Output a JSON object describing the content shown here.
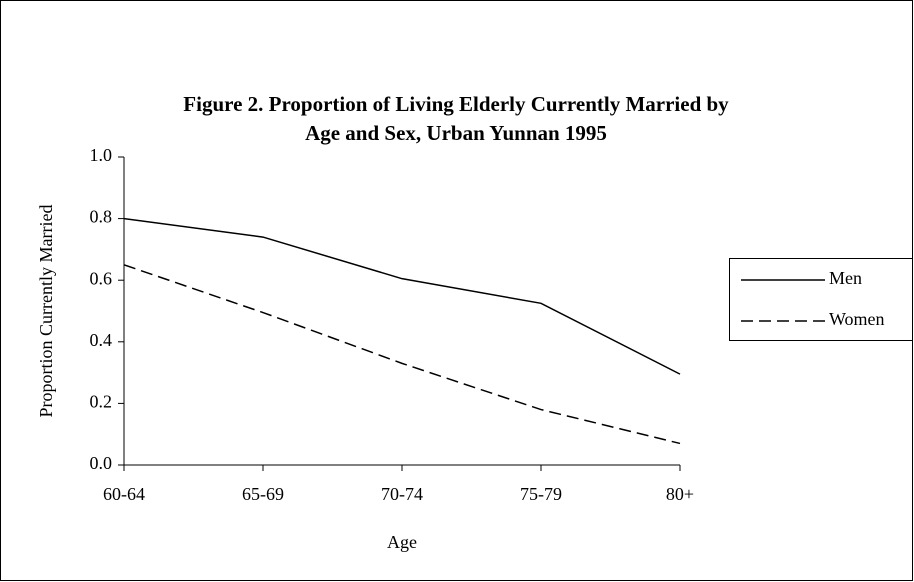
{
  "chart_data": {
    "type": "line",
    "title": [
      "Figure 2.  Proportion of Living Elderly Currently Married by",
      "Age and Sex, Urban Yunnan 1995"
    ],
    "x_label": "Age",
    "y_label": "Proportion Currently Married",
    "categories": [
      "60-64",
      "65-69",
      "70-74",
      "75-79",
      "80+"
    ],
    "series": [
      {
        "name": "Men",
        "color": "#000000",
        "dash": "solid",
        "values": [
          0.8,
          0.74,
          0.605,
          0.525,
          0.295
        ]
      },
      {
        "name": "Women",
        "color": "#000000",
        "dash": "dashed",
        "values": [
          0.65,
          0.495,
          0.33,
          0.18,
          0.07
        ]
      }
    ],
    "ylim": [
      0,
      1
    ],
    "yticks": [
      {
        "value": 0,
        "label": "0.0"
      },
      0.2,
      0.4,
      0.6,
      0.8,
      {
        "value": 1,
        "label": "1.0"
      }
    ],
    "grid": false,
    "legend": "right"
  }
}
